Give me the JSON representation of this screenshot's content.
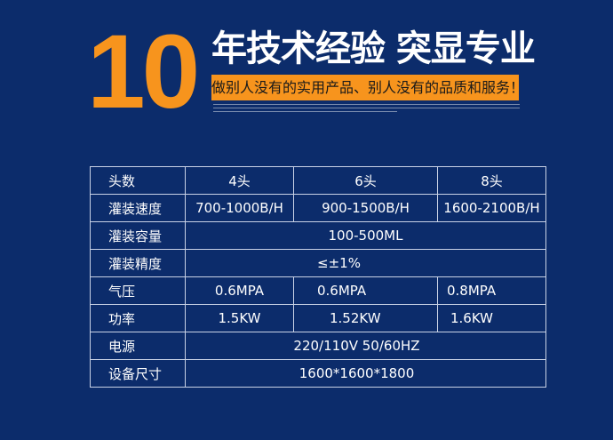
{
  "banner": {
    "number": "10",
    "title": "年技术经验 突显专业",
    "slogan": "做别人没有的实用产品、别人没有的品质和服务！",
    "colors": {
      "background": "#0c2c6b",
      "accent": "#f7941d"
    }
  },
  "specs": {
    "header": [
      "头数",
      "4头",
      "6头",
      "8头"
    ],
    "rows": [
      {
        "label": "灌装速度",
        "values": [
          "700-1000B/H",
          "900-1500B/H",
          "1600-2100B/H"
        ]
      },
      {
        "label": "灌装容量",
        "value": "100-500ML"
      },
      {
        "label": "灌装精度",
        "value": "≤±1%"
      },
      {
        "label": "气压",
        "values": [
          "0.6MPA",
          "0.6MPA",
          "0.8MPA"
        ]
      },
      {
        "label": "功率",
        "values": [
          "1.5KW",
          "1.52KW",
          "1.6KW"
        ]
      },
      {
        "label": "电源",
        "value": "220/110V 50/60HZ"
      },
      {
        "label": "设备尺寸",
        "value": "1600*1600*1800"
      }
    ]
  }
}
